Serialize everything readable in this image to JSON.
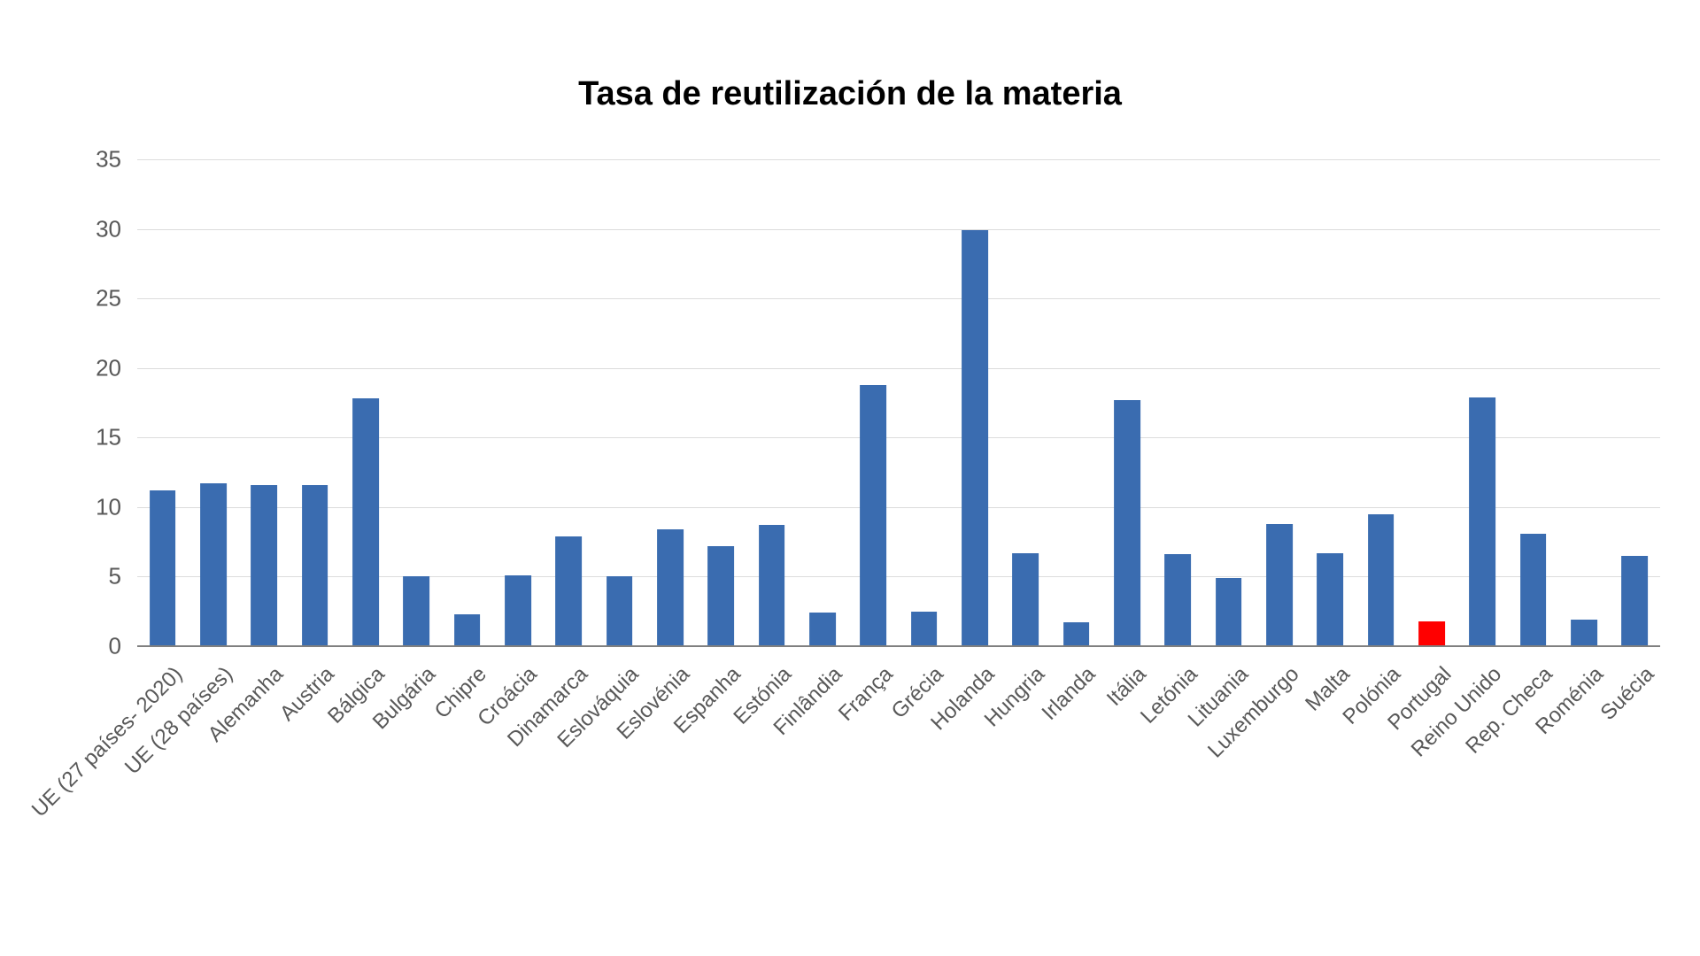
{
  "chart": {
    "type": "bar",
    "title": "Tasa de reutilización de la materia",
    "title_fontsize": 38,
    "title_fontweight": 700,
    "title_color": "#000000",
    "background_color": "#ffffff",
    "grid_color": "#dcdcdc",
    "axis_color": "#808080",
    "tick_label_color": "#595959",
    "tick_label_fontsize": 26,
    "x_label_fontsize": 24,
    "x_label_rotation_deg": -45,
    "ylim": [
      0,
      35
    ],
    "ytick_step": 5,
    "yticks": [
      0,
      5,
      10,
      15,
      20,
      25,
      30,
      35
    ],
    "bar_width_ratio": 0.52,
    "default_bar_color": "#3a6cb0",
    "highlight_bar_color": "#ff0000",
    "categories": [
      "UE (27 países- 2020)",
      "UE (28 países)",
      "Alemanha",
      "Austria",
      "Bálgica",
      "Bulgária",
      "Chipre",
      "Croácia",
      "Dinamarca",
      "Eslováquia",
      "Eslovénia",
      "Espanha",
      "Estónia",
      "Finlândia",
      "França",
      "Grécia",
      "Holanda",
      "Hungria",
      "Irlanda",
      "Itália",
      "Letónia",
      "Lituania",
      "Luxemburgo",
      "Malta",
      "Polónia",
      "Portugal",
      "Reino Unido",
      "Rep. Checa",
      "Roménia",
      "Suécia"
    ],
    "values": [
      11.2,
      11.7,
      11.6,
      11.6,
      17.8,
      5.0,
      2.3,
      5.1,
      7.9,
      5.0,
      8.4,
      7.2,
      8.7,
      2.4,
      18.8,
      2.5,
      29.9,
      6.7,
      1.7,
      17.7,
      6.6,
      4.9,
      8.8,
      6.7,
      9.5,
      1.8,
      17.9,
      8.1,
      1.9,
      6.5
    ],
    "highlight_index": 25
  }
}
